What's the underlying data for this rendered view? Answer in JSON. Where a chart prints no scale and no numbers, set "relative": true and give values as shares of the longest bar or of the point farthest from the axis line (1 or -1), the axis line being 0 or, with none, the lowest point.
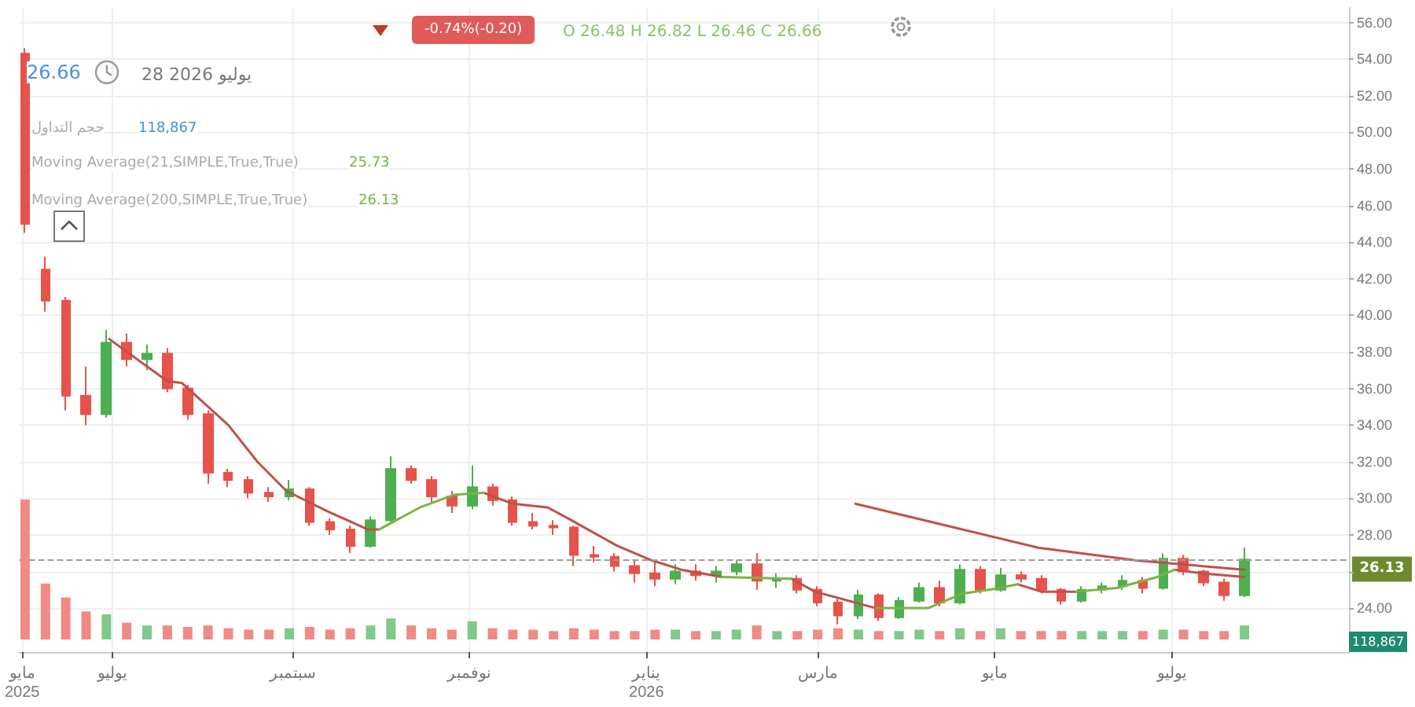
{
  "chart_data": [
    {
      "type": "candlestick",
      "x": [
        "2025-06-01",
        "2025-06-08",
        "2025-06-15",
        "2025-06-22",
        "2025-06-29",
        "2025-07-06",
        "2025-07-13",
        "2025-07-20",
        "2025-07-27",
        "2025-08-03",
        "2025-08-10",
        "2025-08-17",
        "2025-08-24",
        "2025-08-31",
        "2025-09-07",
        "2025-09-14",
        "2025-09-21",
        "2025-09-28",
        "2025-10-05",
        "2025-10-12",
        "2025-10-19",
        "2025-10-26",
        "2025-11-02",
        "2025-11-09",
        "2025-11-16",
        "2025-11-23",
        "2025-11-30",
        "2025-12-07",
        "2025-12-14",
        "2025-12-21",
        "2025-12-28",
        "2026-01-04",
        "2026-01-11",
        "2026-01-18",
        "2026-01-25",
        "2026-02-01",
        "2026-02-08",
        "2026-02-15",
        "2026-02-22",
        "2026-03-01",
        "2026-03-08",
        "2026-03-15",
        "2026-03-22",
        "2026-03-29",
        "2026-04-05",
        "2026-04-12",
        "2026-04-19",
        "2026-04-26",
        "2026-05-03",
        "2026-05-10",
        "2026-05-17",
        "2026-05-24",
        "2026-05-31",
        "2026-06-07",
        "2026-06-14",
        "2026-06-21",
        "2026-06-28",
        "2026-07-05",
        "2026-07-12",
        "2026-07-19",
        "2026-07-26"
      ],
      "ohlc": [
        [
          54.3,
          54.6,
          44.5,
          45.0
        ],
        [
          42.5,
          43.2,
          40.2,
          40.8
        ],
        [
          40.8,
          41.0,
          34.8,
          35.6
        ],
        [
          35.6,
          37.2,
          34.0,
          34.6
        ],
        [
          34.6,
          39.2,
          34.4,
          38.5
        ],
        [
          38.5,
          39.0,
          37.2,
          37.6
        ],
        [
          37.6,
          38.4,
          37.0,
          37.9
        ],
        [
          37.9,
          38.2,
          35.8,
          36.0
        ],
        [
          36.0,
          36.2,
          34.3,
          34.6
        ],
        [
          34.6,
          34.8,
          30.8,
          31.4
        ],
        [
          31.4,
          31.6,
          30.6,
          31.0
        ],
        [
          31.0,
          31.2,
          30.0,
          30.3
        ],
        [
          30.3,
          30.6,
          29.8,
          30.1
        ],
        [
          30.1,
          31.0,
          29.9,
          30.5
        ],
        [
          30.5,
          30.6,
          28.5,
          28.7
        ],
        [
          28.7,
          28.9,
          28.0,
          28.3
        ],
        [
          28.3,
          28.5,
          27.0,
          27.4
        ],
        [
          27.4,
          29.0,
          27.3,
          28.8
        ],
        [
          28.8,
          32.3,
          28.7,
          31.6
        ],
        [
          31.6,
          31.8,
          30.8,
          31.0
        ],
        [
          31.0,
          31.2,
          29.8,
          30.1
        ],
        [
          30.1,
          30.4,
          29.2,
          29.6
        ],
        [
          29.6,
          31.8,
          29.4,
          30.6
        ],
        [
          30.6,
          30.8,
          29.6,
          29.9
        ],
        [
          29.9,
          30.1,
          28.5,
          28.7
        ],
        [
          28.7,
          29.2,
          28.3,
          28.5
        ],
        [
          28.5,
          28.8,
          28.0,
          28.4
        ],
        [
          28.4,
          28.5,
          26.3,
          26.9
        ],
        [
          26.9,
          27.4,
          26.5,
          26.8
        ],
        [
          26.8,
          27.0,
          26.0,
          26.3
        ],
        [
          26.3,
          26.6,
          25.4,
          25.9
        ],
        [
          25.9,
          26.6,
          25.2,
          25.6
        ],
        [
          25.6,
          26.4,
          25.3,
          26.0
        ],
        [
          26.0,
          26.4,
          25.5,
          25.8
        ],
        [
          25.8,
          26.3,
          25.4,
          26.0
        ],
        [
          26.0,
          26.6,
          25.8,
          26.4
        ],
        [
          26.4,
          27.0,
          25.0,
          25.5
        ],
        [
          25.5,
          25.9,
          25.1,
          25.6
        ],
        [
          25.6,
          25.8,
          24.8,
          25.0
        ],
        [
          25.0,
          25.2,
          24.1,
          24.3
        ],
        [
          24.3,
          24.5,
          23.1,
          23.6
        ],
        [
          23.6,
          25.0,
          23.4,
          24.7
        ],
        [
          24.7,
          24.8,
          23.3,
          23.5
        ],
        [
          23.5,
          24.6,
          23.4,
          24.4
        ],
        [
          24.4,
          25.4,
          24.3,
          25.1
        ],
        [
          25.1,
          25.5,
          24.1,
          24.3
        ],
        [
          24.3,
          26.4,
          24.2,
          26.1
        ],
        [
          26.1,
          26.3,
          24.8,
          25.0
        ],
        [
          25.0,
          26.2,
          24.9,
          25.8
        ],
        [
          25.8,
          26.0,
          25.4,
          25.6
        ],
        [
          25.6,
          25.8,
          24.8,
          25.0
        ],
        [
          25.0,
          25.1,
          24.2,
          24.4
        ],
        [
          24.4,
          25.2,
          24.3,
          25.0
        ],
        [
          25.0,
          25.4,
          24.8,
          25.2
        ],
        [
          25.2,
          25.8,
          25.0,
          25.5
        ],
        [
          25.5,
          25.7,
          24.8,
          25.1
        ],
        [
          25.1,
          27.0,
          25.0,
          26.7
        ],
        [
          26.7,
          26.9,
          25.8,
          26.0
        ],
        [
          26.0,
          26.1,
          25.2,
          25.4
        ],
        [
          25.4,
          25.6,
          24.4,
          24.7
        ],
        [
          24.7,
          27.3,
          24.6,
          26.66
        ]
      ],
      "colors": [
        "#e5534b",
        "#e5534b",
        "#e5534b",
        "#e5534b",
        "#4caf50",
        "#e5534b",
        "#4caf50",
        "#e5534b",
        "#e5534b",
        "#e5534b",
        "#e5534b",
        "#e5534b",
        "#e5534b",
        "#4caf50",
        "#e5534b",
        "#e5534b",
        "#e5534b",
        "#4caf50",
        "#4caf50",
        "#e5534b",
        "#e5534b",
        "#e5534b",
        "#4caf50",
        "#e5534b",
        "#e5534b",
        "#e5534b",
        "#e5534b",
        "#e5534b",
        "#e5534b",
        "#e5534b",
        "#e5534b",
        "#e5534b",
        "#4caf50",
        "#e5534b",
        "#4caf50",
        "#4caf50",
        "#e5534b",
        "#4caf50",
        "#e5534b",
        "#e5534b",
        "#e5534b",
        "#4caf50",
        "#e5534b",
        "#4caf50",
        "#4caf50",
        "#e5534b",
        "#4caf50",
        "#e5534b",
        "#4caf50",
        "#e5534b",
        "#e5534b",
        "#e5534b",
        "#4caf50",
        "#4caf50",
        "#4caf50",
        "#e5534b",
        "#4caf50",
        "#e5534b",
        "#e5534b",
        "#e5534b",
        "#4caf50"
      ],
      "series": [
        {
          "type": "line",
          "color": "#c0504d",
          "x": [
            "2025-06-30",
            "2025-07-20",
            "2025-07-25",
            "2025-08-10",
            "2025-08-20",
            "2025-08-30",
            "2025-09-13",
            "2025-09-27",
            "2025-10-01",
            "2025-10-15",
            "2025-11-06",
            "2025-11-16",
            "2025-11-28",
            "2025-12-05",
            "2025-12-22",
            "2026-01-03",
            "2026-01-13",
            "2026-01-27",
            "2026-02-10",
            "2026-02-20",
            "2026-02-28",
            "2026-03-21",
            "2026-04-10",
            "2026-05-09",
            "2026-05-17",
            "2026-05-29",
            "2026-06-15",
            "2026-07-02",
            "2026-07-11",
            "2026-07-26"
          ],
          "values": [
            38.7,
            36.4,
            36.3,
            34.0,
            32.0,
            30.4,
            29.3,
            28.3,
            28.3,
            null,
            30.3,
            29.7,
            29.5,
            28.9,
            27.4,
            26.6,
            26.1,
            25.7,
            null,
            25.6,
            24.9,
            24.0,
            null,
            25.3,
            24.9,
            24.9,
            null,
            26.1,
            25.9,
            25.7
          ]
        },
        {
          "type": "line",
          "color": "#7cb342",
          "x": [
            "2025-10-01",
            "2025-10-15",
            "2025-10-27",
            "2025-11-06",
            "2025-12-01",
            "2026-01-27",
            "2026-02-20",
            "2026-03-10",
            "2026-03-21",
            "2026-03-26",
            "2026-04-08",
            "2026-04-20",
            "2026-04-29",
            "2026-05-09",
            "2026-05-20",
            "2026-05-29",
            "2026-06-12",
            "2026-06-26",
            "2026-07-02"
          ],
          "values": [
            28.3,
            29.5,
            30.2,
            30.3,
            null,
            25.7,
            25.6,
            null,
            24.0,
            24.0,
            24.0,
            24.8,
            25.0,
            25.3,
            null,
            24.9,
            25.1,
            25.7,
            26.1
          ]
        },
        {
          "type": "line",
          "color": "#c0504d",
          "x": [
            "2026-03-14",
            "2026-04-12",
            "2026-05-16",
            "2026-06-19",
            "2026-07-26"
          ],
          "values": [
            29.7,
            28.6,
            27.3,
            26.6,
            26.1
          ]
        }
      ],
      "xlim": [
        "2025-05-30",
        "2026-08-31"
      ],
      "xticks": [
        {
          "value": "2025-05-31",
          "label": "مايو\n2025"
        },
        {
          "value": "2025-07-01",
          "label": "يوليو"
        },
        {
          "value": "2025-09-01",
          "label": "سبتمبر"
        },
        {
          "value": "2025-11-01",
          "label": "نوفمبر"
        },
        {
          "value": "2026-01-01",
          "label": "يناير\n2026"
        },
        {
          "value": "2026-03-01",
          "label": "مارس"
        },
        {
          "value": "2026-05-01",
          "label": "مايو"
        },
        {
          "value": "2026-07-01",
          "label": "يوليو"
        }
      ],
      "ylim": [
        21.6,
        56.8
      ],
      "yticks": [
        {
          "value": 24,
          "label": "24.00"
        },
        {
          "value": 26,
          "label": null
        },
        {
          "value": 28,
          "label": "28.00"
        },
        {
          "value": 30,
          "label": "30.00"
        },
        {
          "value": 32,
          "label": "32.00"
        },
        {
          "value": 34,
          "label": "34.00"
        },
        {
          "value": 36,
          "label": "36.00"
        },
        {
          "value": 38,
          "label": "38.00"
        },
        {
          "value": 40,
          "label": "40.00"
        },
        {
          "value": 42,
          "label": "42.00"
        },
        {
          "value": 44,
          "label": "44.00"
        },
        {
          "value": 46,
          "label": "46.00"
        },
        {
          "value": 48,
          "label": "48.00"
        },
        {
          "value": 50,
          "label": "50.00"
        },
        {
          "value": 52,
          "label": "52.00"
        },
        {
          "value": 54,
          "label": "54.00"
        },
        {
          "value": 56,
          "label": "56.00"
        }
      ],
      "grid": true,
      "marker": "none",
      "line_style": "solid",
      "ref_lines": [
        {
          "axis": "y",
          "value": 26.66,
          "color": "#9e9e9e",
          "line_style": "dashed"
        }
      ],
      "annotations": [
        "-0.74%(-0.20)",
        "O 26.48   H 26.82   L 26.46   C 26.66",
        "26.66",
        "28 2026 يوليو",
        "حجم التداول",
        "118,867",
        "Moving Average(21,SIMPLE,True,True)",
        "25.73",
        "Moving Average(200,SIMPLE,True,True)",
        "26.13",
        {
          "text": "26.13",
          "y": 26.13
        }
      ]
    },
    {
      "type": "bar",
      "relative": true,
      "categories": [
        null,
        null,
        null,
        null,
        null,
        null,
        null,
        null,
        null,
        null,
        null,
        null,
        null,
        null,
        null,
        null,
        null,
        null,
        null,
        null,
        null,
        null,
        null,
        null,
        null,
        null,
        null,
        null,
        null,
        null,
        null,
        null,
        null,
        null,
        null,
        null,
        null,
        null,
        null,
        null,
        null,
        null,
        null,
        null,
        null,
        null,
        null,
        null,
        null,
        null,
        null,
        null,
        null,
        null,
        null,
        null,
        null,
        null,
        null,
        null,
        null
      ],
      "values": [
        1,
        0.4,
        0.3,
        0.2,
        0.18,
        0.12,
        0.1,
        0.1,
        0.09,
        0.1,
        0.08,
        0.07,
        0.07,
        0.08,
        0.09,
        0.07,
        0.08,
        0.1,
        0.15,
        0.1,
        0.08,
        0.07,
        0.13,
        0.08,
        0.07,
        0.07,
        0.06,
        0.08,
        0.07,
        0.06,
        0.06,
        0.07,
        0.07,
        0.06,
        0.06,
        0.07,
        0.1,
        0.06,
        0.06,
        0.07,
        0.08,
        0.07,
        0.06,
        0.06,
        0.07,
        0.06,
        0.08,
        0.06,
        0.08,
        0.06,
        0.06,
        0.06,
        0.06,
        0.06,
        0.06,
        0.06,
        0.07,
        0.07,
        0.06,
        0.06,
        0.1
      ],
      "colors": [
        "#f08a85",
        "#f08a85",
        "#f08a85",
        "#f08a85",
        "#7fc98a",
        "#f08a85",
        "#7fc98a",
        "#f08a85",
        "#f08a85",
        "#f08a85",
        "#f08a85",
        "#f08a85",
        "#f08a85",
        "#7fc98a",
        "#f08a85",
        "#f08a85",
        "#f08a85",
        "#7fc98a",
        "#7fc98a",
        "#f08a85",
        "#f08a85",
        "#f08a85",
        "#7fc98a",
        "#f08a85",
        "#f08a85",
        "#f08a85",
        "#f08a85",
        "#f08a85",
        "#f08a85",
        "#f08a85",
        "#f08a85",
        "#f08a85",
        "#7fc98a",
        "#f08a85",
        "#7fc98a",
        "#7fc98a",
        "#f08a85",
        "#7fc98a",
        "#f08a85",
        "#f08a85",
        "#f08a85",
        "#7fc98a",
        "#f08a85",
        "#7fc98a",
        "#7fc98a",
        "#f08a85",
        "#7fc98a",
        "#f08a85",
        "#7fc98a",
        "#f08a85",
        "#f08a85",
        "#f08a85",
        "#7fc98a",
        "#7fc98a",
        "#7fc98a",
        "#f08a85",
        "#7fc98a",
        "#f08a85",
        "#f08a85",
        "#f08a85",
        "#7fc98a"
      ],
      "annotations": [
        "118,867"
      ]
    }
  ]
}
